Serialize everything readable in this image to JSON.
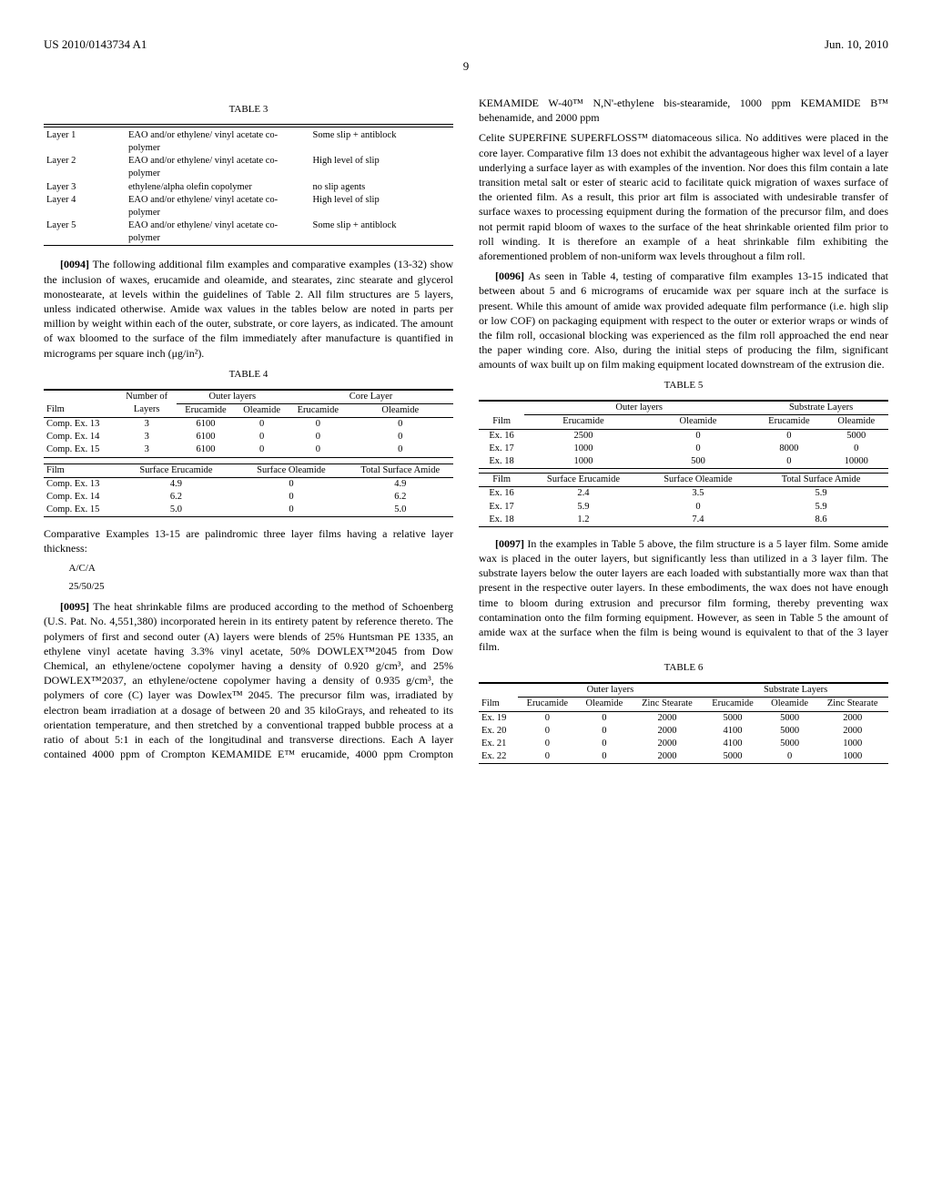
{
  "header": {
    "pub": "US 2010/0143734 A1",
    "date": "Jun. 10, 2010",
    "page": "9"
  },
  "table3": {
    "title": "TABLE 3",
    "rows": [
      {
        "layer": "Layer 1",
        "material": "EAO and/or ethylene/ vinyl acetate co-polymer",
        "note": "Some slip + antiblock"
      },
      {
        "layer": "Layer 2",
        "material": "EAO and/or ethylene/ vinyl acetate co-polymer",
        "note": "High level of slip"
      },
      {
        "layer": "Layer 3",
        "material": "ethylene/alpha olefin copolymer",
        "note": "no slip agents"
      },
      {
        "layer": "Layer 4",
        "material": "EAO and/or ethylene/ vinyl acetate co-polymer",
        "note": "High level of slip"
      },
      {
        "layer": "Layer 5",
        "material": "EAO and/or ethylene/ vinyl acetate co-polymer",
        "note": "Some slip + antiblock"
      }
    ]
  },
  "para94": {
    "num": "[0094]",
    "text": "The following additional film examples and comparative examples (13-32) show the inclusion of waxes, erucamide and oleamide, and stearates, zinc stearate and glycerol monostearate, at levels within the guidelines of Table 2. All film structures are 5 layers, unless indicated otherwise. Amide wax values in the tables below are noted in parts per million by weight within each of the outer, substrate, or core layers, as indicated. The amount of wax bloomed to the surface of the film immediately after manufacture is quantified in micrograms per square inch (μg/in²)."
  },
  "table4": {
    "title": "TABLE 4",
    "head1": [
      "",
      "Number of",
      "Outer layers",
      "",
      "Core Layer",
      ""
    ],
    "head2": [
      "Film",
      "Layers",
      "Erucamide",
      "Oleamide",
      "Erucamide",
      "Oleamide"
    ],
    "rows1": [
      [
        "Comp. Ex. 13",
        "3",
        "6100",
        "0",
        "0",
        "0"
      ],
      [
        "Comp. Ex. 14",
        "3",
        "6100",
        "0",
        "0",
        "0"
      ],
      [
        "Comp. Ex. 15",
        "3",
        "6100",
        "0",
        "0",
        "0"
      ]
    ],
    "head3": [
      "Film",
      "Surface Erucamide",
      "Surface Oleamide",
      "Total Surface Amide"
    ],
    "rows2": [
      [
        "Comp. Ex. 13",
        "4.9",
        "0",
        "4.9"
      ],
      [
        "Comp. Ex. 14",
        "6.2",
        "0",
        "6.2"
      ],
      [
        "Comp. Ex. 15",
        "5.0",
        "0",
        "5.0"
      ]
    ]
  },
  "afterT4": {
    "lead": "Comparative Examples 13-15 are palindromic three layer films having a relative layer thickness:",
    "l1": "A/C/A",
    "l2": "25/50/25"
  },
  "para95": {
    "num": "[0095]",
    "text": "The heat shrinkable films are produced according to the method of Schoenberg (U.S. Pat. No. 4,551,380) incorporated herein in its entirety patent by reference thereto. The polymers of first and second outer (A) layers were blends of 25% Huntsman PE 1335, an ethylene vinyl acetate having 3.3% vinyl acetate, 50% DOWLEX™2045 from Dow Chemical, an ethylene/octene copolymer having a density of 0.920 g/cm³, and 25% DOWLEX™2037, an ethylene/octene copolymer having a density of 0.935 g/cm³, the polymers of core (C) layer was Dowlex™ 2045. The precursor film was, irradiated by electron beam irradiation at a dosage of between 20 and 35 kiloGrays, and reheated to its orientation temperature, and then stretched by a conventional trapped bubble process at a ratio of about 5:1 in each of the longitudinal and transverse directions. Each A layer contained 4000 ppm of Crompton KEMAMIDE E™ erucamide, 4000 ppm Crompton KEMAMIDE W-40™ N,N'-ethylene bis-stearamide, 1000 ppm KEMAMIDE B™ behenamide, and 2000 ppm"
  },
  "col2top": "Celite SUPERFINE SUPERFLOSS™ diatomaceous silica. No additives were placed in the core layer. Comparative film 13 does not exhibit the advantageous higher wax level of a layer underlying a surface layer as with examples of the invention. Nor does this film contain a late transition metal salt or ester of stearic acid to facilitate quick migration of waxes surface of the oriented film. As a result, this prior art film is associated with undesirable transfer of surface waxes to processing equipment during the formation of the precursor film, and does not permit rapid bloom of waxes to the surface of the heat shrinkable oriented film prior to roll winding. It is therefore an example of a heat shrinkable film exhibiting the aforementioned problem of non-uniform wax levels throughout a film roll.",
  "para96": {
    "num": "[0096]",
    "text": "As seen in Table 4, testing of comparative film examples 13-15 indicated that between about 5 and 6 micrograms of erucamide wax per square inch at the surface is present. While this amount of amide wax provided adequate film performance (i.e. high slip or low COF) on packaging equipment with respect to the outer or exterior wraps or winds of the film roll, occasional blocking was experienced as the film roll approached the end near the paper winding core. Also, during the initial steps of producing the film, significant amounts of wax built up on film making equipment located downstream of the extrusion die."
  },
  "table5": {
    "title": "TABLE 5",
    "head1": [
      "",
      "Outer layers",
      "",
      "Substrate Layers",
      ""
    ],
    "head2": [
      "Film",
      "Erucamide",
      "Oleamide",
      "Erucamide",
      "Oleamide"
    ],
    "rows1": [
      [
        "Ex. 16",
        "2500",
        "0",
        "0",
        "5000"
      ],
      [
        "Ex. 17",
        "1000",
        "0",
        "8000",
        "0"
      ],
      [
        "Ex. 18",
        "1000",
        "500",
        "0",
        "10000"
      ]
    ],
    "head3": [
      "Film",
      "Surface Erucamide",
      "Surface Oleamide",
      "Total Surface Amide"
    ],
    "rows2": [
      [
        "Ex. 16",
        "2.4",
        "3.5",
        "5.9"
      ],
      [
        "Ex. 17",
        "5.9",
        "0",
        "5.9"
      ],
      [
        "Ex. 18",
        "1.2",
        "7.4",
        "8.6"
      ]
    ]
  },
  "para97": {
    "num": "[0097]",
    "text": "In the examples in Table 5 above, the film structure is a 5 layer film. Some amide wax is placed in the outer layers, but significantly less than utilized in a 3 layer film. The substrate layers below the outer layers are each loaded with substantially more wax than that present in the respective outer layers. In these embodiments, the wax does not have enough time to bloom during extrusion and precursor film forming, thereby preventing wax contamination onto the film forming equipment. However, as seen in Table 5 the amount of amide wax at the surface when the film is being wound is equivalent to that of the 3 layer film."
  },
  "table6": {
    "title": "TABLE 6",
    "head1": [
      "",
      "Outer layers",
      "",
      "",
      "Substrate Layers",
      "",
      ""
    ],
    "head2": [
      "Film",
      "Erucamide",
      "Oleamide",
      "Zinc Stearate",
      "Erucamide",
      "Oleamide",
      "Zinc Stearate"
    ],
    "rows": [
      [
        "Ex. 19",
        "0",
        "0",
        "2000",
        "5000",
        "5000",
        "2000"
      ],
      [
        "Ex. 20",
        "0",
        "0",
        "2000",
        "4100",
        "5000",
        "2000"
      ],
      [
        "Ex. 21",
        "0",
        "0",
        "2000",
        "4100",
        "5000",
        "1000"
      ],
      [
        "Ex. 22",
        "0",
        "0",
        "2000",
        "5000",
        "0",
        "1000"
      ]
    ]
  }
}
